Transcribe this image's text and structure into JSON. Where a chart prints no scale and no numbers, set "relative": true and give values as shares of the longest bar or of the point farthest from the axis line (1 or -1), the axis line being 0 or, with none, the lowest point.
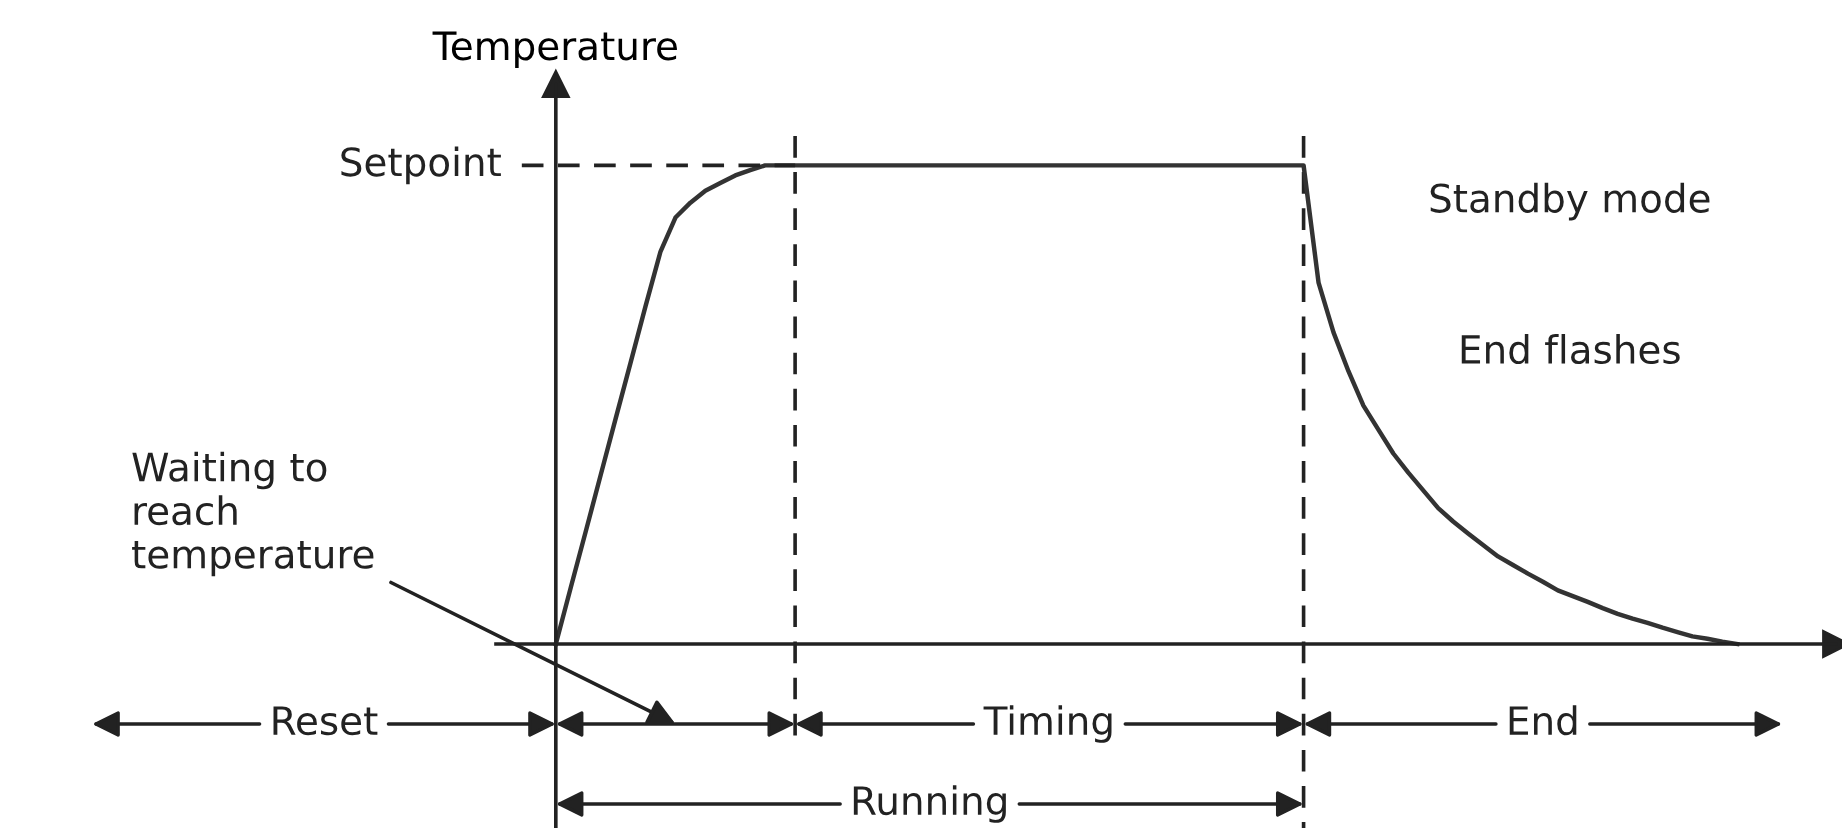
{
  "chart_data": {
    "type": "line",
    "relative": true,
    "ylabel": "Temperature",
    "categories": [
      null,
      null,
      null,
      null,
      null,
      null,
      null,
      null,
      null,
      null,
      null,
      null,
      null,
      null,
      null,
      null,
      null,
      null,
      null,
      null,
      null,
      null,
      null,
      null,
      null,
      null,
      null,
      null,
      null,
      null,
      null,
      null,
      null,
      null,
      null,
      null,
      null,
      null,
      null,
      null,
      null,
      null,
      null,
      null,
      null,
      null,
      null,
      null,
      null,
      null,
      null,
      null,
      null,
      null,
      null,
      null,
      null,
      null,
      null,
      null,
      null,
      null,
      null,
      null,
      null,
      null,
      null,
      null,
      null,
      null,
      null,
      null,
      null,
      null,
      null,
      null,
      null,
      null,
      null,
      null,
      null,
      null,
      null,
      null,
      null,
      null,
      null,
      null,
      null,
      null,
      null,
      null,
      null,
      null,
      null,
      null,
      null,
      null,
      null,
      null,
      null,
      null,
      null,
      null,
      null,
      null,
      null,
      null,
      null,
      null,
      null,
      null,
      null,
      null
    ],
    "series": [
      {
        "color": "#333333",
        "values": [
          null,
          null,
          null,
          null,
          null,
          null,
          null,
          null,
          null,
          null,
          null,
          null,
          null,
          null,
          null,
          null,
          null,
          null,
          null,
          null,
          null,
          null,
          null,
          null,
          null,
          null,
          null,
          null,
          null,
          null,
          null,
          0,
          0.118,
          0.235,
          0.353,
          0.471,
          0.588,
          0.706,
          0.82,
          0.891,
          0.922,
          0.947,
          0.963,
          0.979,
          0.99,
          1,
          1,
          1,
          1,
          1,
          1,
          1,
          1,
          1,
          1,
          1,
          1,
          1,
          1,
          1,
          1,
          1,
          1,
          1,
          1,
          1,
          1,
          1,
          1,
          1,
          1,
          1,
          1,
          1,
          1,
          1,
          1,
          1,
          1,
          1,
          1,
          1,
          0.755,
          0.651,
          0.57,
          0.498,
          0.448,
          0.398,
          0.358,
          0.321,
          0.284,
          0.256,
          0.231,
          0.207,
          0.183,
          0.165,
          0.147,
          0.13,
          0.112,
          0.1,
          0.088,
          0.075,
          0.063,
          0.053,
          0.044,
          0.034,
          0.025,
          0.016,
          0.011,
          0.005,
          0,
          null,
          null,
          null
        ]
      }
    ],
    "ref_lines": [
      {
        "axis": "y",
        "value": 1,
        "label": "Setpoint",
        "line_style": "dashed",
        "color": "#222222"
      }
    ],
    "annotations": [
      "Waiting to\nreach\ntemperature",
      "Standby mode",
      "End flashes",
      "Reset",
      "Timing",
      "End",
      "Running"
    ]
  }
}
